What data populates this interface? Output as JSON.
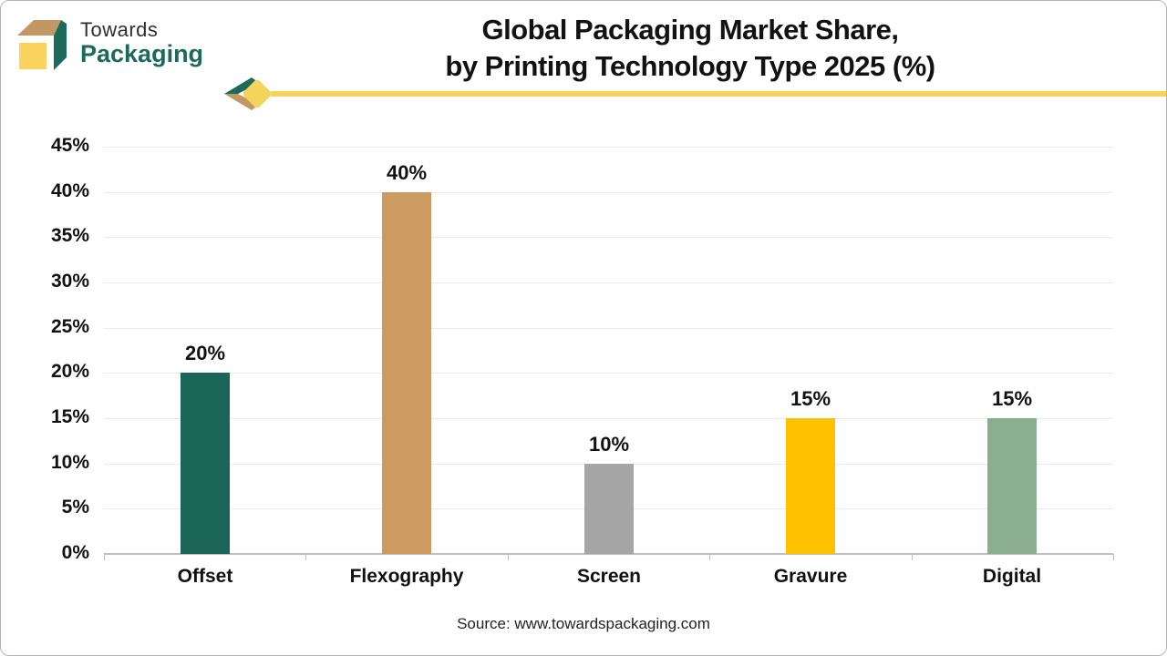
{
  "header": {
    "logo": {
      "line1": "Towards",
      "line2": "Packaging"
    },
    "title_line1": "Global Packaging Market Share,",
    "title_line2": "by Printing Technology Type 2025 (%)"
  },
  "footer": {
    "source": "Source: www.towardspackaging.com"
  },
  "chart_data": {
    "type": "bar",
    "title": "Global Packaging Market Share, by Printing Technology Type 2025 (%)",
    "categories": [
      "Offset",
      "Flexography",
      "Screen",
      "Gravure",
      "Digital"
    ],
    "values": [
      20,
      40,
      10,
      15,
      15
    ],
    "value_labels": [
      "20%",
      "40%",
      "10%",
      "15%",
      "15%"
    ],
    "bar_colors": [
      "#1a6557",
      "#cd9a62",
      "#a6a6a6",
      "#ffc000",
      "#8bad90"
    ],
    "xlabel": "",
    "ylabel": "",
    "ylim": [
      0,
      45
    ],
    "ytick_step": 5,
    "ytick_labels": [
      "0%",
      "5%",
      "10%",
      "15%",
      "20%",
      "25%",
      "30%",
      "35%",
      "40%",
      "45%"
    ],
    "grid": true,
    "legend": "none"
  },
  "colors": {
    "logo_green": "#1d6a5b",
    "logo_tan": "#c19763",
    "logo_yellow": "#fad45e",
    "accent_line_yellow": "#f5d45c",
    "axis_line": "#bfbfbf",
    "gridline": "#ebebeb",
    "title_text": "#121212"
  }
}
